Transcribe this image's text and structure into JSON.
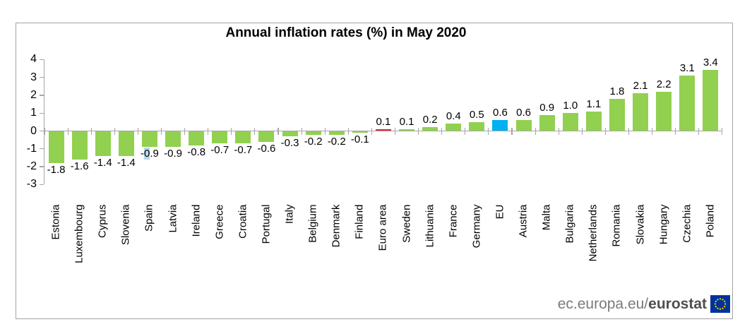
{
  "title": "Annual inflation rates (%) in May 2020",
  "footer": {
    "site_text": "ec.europa.eu/",
    "brand_text": "eurostat",
    "logo": "eu-flag-icon"
  },
  "colors": {
    "bar_default": "#92d050",
    "bar_euro_area": "#e8232a",
    "bar_eu": "#00b0f0",
    "axis": "#a6a6a6",
    "frame": "#a3a3a3",
    "label_highlight": "#b9d7ec",
    "footer_text": "#7b7b7b",
    "footer_brand": "#4f4f4f",
    "flag_blue": "#003399",
    "flag_stars": "#ffcc00"
  },
  "chart_data": {
    "type": "bar",
    "title": "Annual inflation rates (%) in May 2020",
    "categories": [
      "Estonia",
      "Luxembourg",
      "Cyprus",
      "Slovenia",
      "Spain",
      "Latvia",
      "Ireland",
      "Greece",
      "Croatia",
      "Portugal",
      "Italy",
      "Belgium",
      "Denmark",
      "Finland",
      "Euro area",
      "Sweden",
      "Lithuania",
      "France",
      "Germany",
      "EU",
      "Austria",
      "Malta",
      "Bulgaria",
      "Netherlands",
      "Romania",
      "Slovakia",
      "Hungary",
      "Czechia",
      "Poland"
    ],
    "values": [
      -1.8,
      -1.6,
      -1.4,
      -1.4,
      -0.9,
      -0.9,
      -0.8,
      -0.7,
      -0.7,
      -0.6,
      -0.3,
      -0.2,
      -0.2,
      -0.1,
      0.1,
      0.1,
      0.2,
      0.4,
      0.5,
      0.6,
      0.6,
      0.9,
      1.0,
      1.1,
      1.8,
      2.1,
      2.2,
      3.1,
      3.4
    ],
    "bar_colors": {
      "default": "#92d050",
      "Euro area": "#e8232a",
      "EU": "#00b0f0"
    },
    "data_labels": "outside-end",
    "label_highlight": {
      "category": "Spain",
      "char_index": 1
    },
    "xlabel": "",
    "ylabel": "",
    "ylim": [
      -3,
      4
    ],
    "yticks": [
      4,
      3,
      2,
      1,
      0,
      -1,
      -2,
      -3
    ],
    "grid": false,
    "legend": "none"
  }
}
